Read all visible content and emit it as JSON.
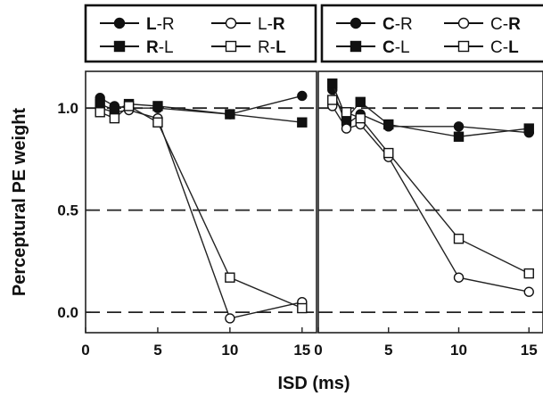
{
  "chart_data": [
    {
      "type": "line",
      "panel": "left",
      "xlabel": "ISD (ms)",
      "ylabel": "Perceptural PE weight",
      "xlim": [
        0,
        16
      ],
      "ylim": [
        -0.1,
        1.18
      ],
      "xticks": [
        "0",
        "5",
        "10",
        "15"
      ],
      "yticks": [
        "1.0",
        "0.5",
        "0.0"
      ],
      "reference_lines": [
        1.0,
        0.5,
        0.0
      ],
      "legend": [
        {
          "pre": "",
          "bold": "L",
          "post": "-R",
          "marker": "circle-filled"
        },
        {
          "pre": "L-",
          "bold": "R",
          "post": "",
          "marker": "circle-open"
        },
        {
          "pre": "",
          "bold": "R",
          "post": "-L",
          "marker": "square-filled"
        },
        {
          "pre": "R-",
          "bold": "L",
          "post": "",
          "marker": "square-open"
        }
      ],
      "series": [
        {
          "marker": "circle-filled",
          "x": [
            1,
            2,
            3,
            5,
            10,
            15
          ],
          "y": [
            1.05,
            1.01,
            1.0,
            1.0,
            0.97,
            1.06
          ]
        },
        {
          "marker": "circle-open",
          "x": [
            1,
            2,
            3,
            5,
            10,
            15
          ],
          "y": [
            1.0,
            0.98,
            0.99,
            0.95,
            -0.03,
            0.05
          ]
        },
        {
          "marker": "square-filled",
          "x": [
            1,
            2,
            3,
            5,
            10,
            15
          ],
          "y": [
            1.02,
            0.99,
            1.02,
            1.01,
            0.97,
            0.93
          ]
        },
        {
          "marker": "square-open",
          "x": [
            1,
            2,
            3,
            5,
            10,
            15
          ],
          "y": [
            0.98,
            0.95,
            1.01,
            0.93,
            0.17,
            0.02
          ]
        }
      ]
    },
    {
      "type": "line",
      "panel": "right",
      "xlabel": "ISD (ms)",
      "xlim": [
        0,
        16
      ],
      "ylim": [
        -0.1,
        1.18
      ],
      "xticks": [
        "0",
        "5",
        "10",
        "15"
      ],
      "reference_lines": [
        1.0,
        0.5,
        0.0
      ],
      "legend": [
        {
          "pre": "",
          "bold": "C",
          "post": "-R",
          "marker": "circle-filled"
        },
        {
          "pre": "C-",
          "bold": "R",
          "post": "",
          "marker": "circle-open"
        },
        {
          "pre": "",
          "bold": "C",
          "post": "-L",
          "marker": "square-filled"
        },
        {
          "pre": "C-",
          "bold": "L",
          "post": "",
          "marker": "square-open"
        }
      ],
      "series": [
        {
          "marker": "circle-filled",
          "x": [
            1,
            2,
            3,
            5,
            10,
            15
          ],
          "y": [
            1.09,
            0.92,
            0.97,
            0.91,
            0.91,
            0.88
          ]
        },
        {
          "marker": "circle-open",
          "x": [
            1,
            2,
            3,
            5,
            10,
            15
          ],
          "y": [
            1.01,
            0.9,
            0.92,
            0.76,
            0.17,
            0.1
          ]
        },
        {
          "marker": "square-filled",
          "x": [
            1,
            2,
            3,
            5,
            10,
            15
          ],
          "y": [
            1.12,
            0.95,
            1.03,
            0.92,
            0.86,
            0.9
          ]
        },
        {
          "marker": "square-open",
          "x": [
            1,
            2,
            3,
            5,
            10,
            15
          ],
          "y": [
            1.04,
            0.98,
            0.95,
            0.78,
            0.36,
            0.19
          ]
        }
      ]
    }
  ]
}
